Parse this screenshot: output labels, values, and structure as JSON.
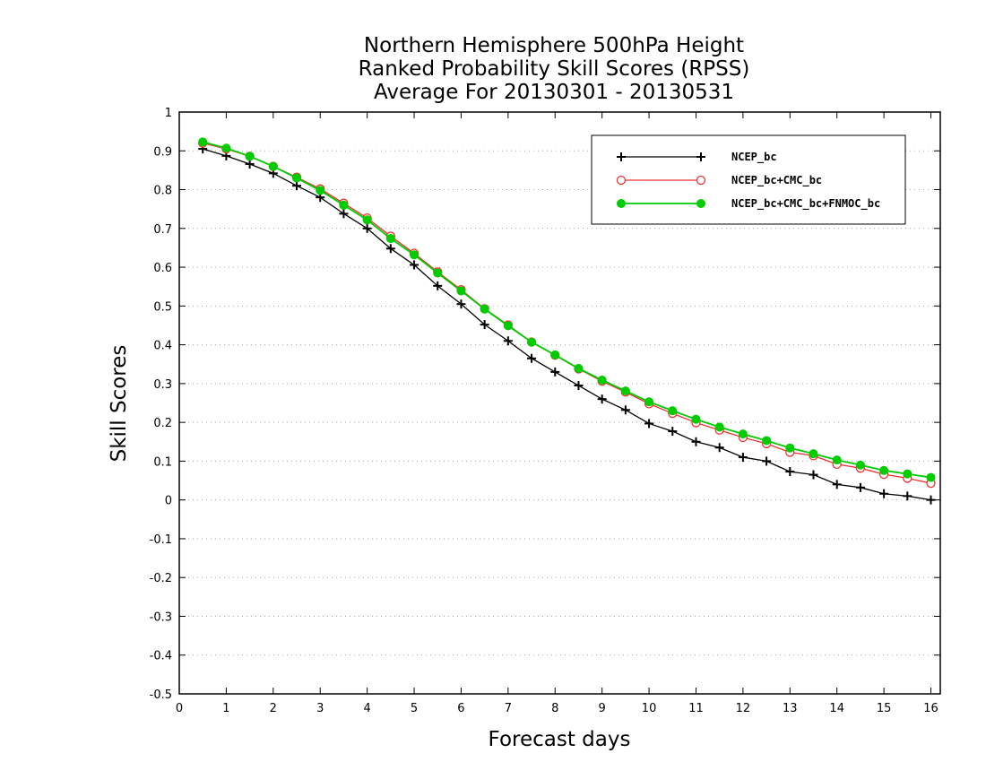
{
  "chart_data": {
    "type": "line",
    "title": [
      "Northern Hemisphere 500hPa Height",
      "Ranked Probability Skill Scores (RPSS)",
      "Average For 20130301 - 20130531"
    ],
    "xlabel": "Forecast days",
    "ylabel": "Skill Scores",
    "xlim": [
      0,
      16.2
    ],
    "ylim": [
      -0.5,
      1
    ],
    "xticks": [
      0,
      1,
      2,
      3,
      4,
      5,
      6,
      7,
      8,
      9,
      10,
      11,
      12,
      13,
      14,
      15,
      16
    ],
    "yticks": [
      -0.5,
      -0.4,
      -0.3,
      -0.2,
      -0.1,
      0,
      0.1,
      0.2,
      0.3,
      0.4,
      0.5,
      0.6,
      0.7,
      0.8,
      0.9,
      1
    ],
    "ytick_labels": [
      "-0.5",
      "-0.4",
      "-0.3",
      "-0.2",
      "-0.1",
      "0",
      "0.1",
      "0.2",
      "0.3",
      "0.4",
      "0.5",
      "0.6",
      "0.7",
      "0.8",
      "0.9",
      "1"
    ],
    "grid": true,
    "legend_position": "top-right",
    "x": [
      0.5,
      1,
      1.5,
      2,
      2.5,
      3,
      3.5,
      4,
      4.5,
      5,
      5.5,
      6,
      6.5,
      7,
      7.5,
      8,
      8.5,
      9,
      9.5,
      10,
      10.5,
      11,
      11.5,
      12,
      12.5,
      13,
      13.5,
      14,
      14.5,
      15,
      15.5,
      16
    ],
    "series": [
      {
        "name": "NCEP_bc",
        "color": "#000000",
        "marker": "plus",
        "values": [
          0.905,
          0.887,
          0.866,
          0.842,
          0.81,
          0.78,
          0.738,
          0.7,
          0.648,
          0.606,
          0.552,
          0.505,
          0.452,
          0.41,
          0.365,
          0.33,
          0.295,
          0.26,
          0.232,
          0.197,
          0.177,
          0.15,
          0.135,
          0.11,
          0.1,
          0.073,
          0.065,
          0.04,
          0.032,
          0.016,
          0.01,
          0.0
        ]
      },
      {
        "name": "NCEP_bc+CMC_bc",
        "color": "#ee3333",
        "marker": "open-circle",
        "values": [
          0.92,
          0.905,
          0.886,
          0.86,
          0.832,
          0.802,
          0.765,
          0.727,
          0.68,
          0.636,
          0.588,
          0.542,
          0.493,
          0.451,
          0.407,
          0.373,
          0.338,
          0.306,
          0.278,
          0.248,
          0.223,
          0.199,
          0.18,
          0.161,
          0.145,
          0.123,
          0.114,
          0.092,
          0.082,
          0.066,
          0.056,
          0.043
        ]
      },
      {
        "name": "NCEP_bc+CMC_bc+FNMOC_bc",
        "color": "#00cc00",
        "marker": "filled-circle",
        "values": [
          0.923,
          0.907,
          0.886,
          0.86,
          0.83,
          0.798,
          0.76,
          0.722,
          0.674,
          0.632,
          0.585,
          0.539,
          0.492,
          0.449,
          0.407,
          0.374,
          0.339,
          0.309,
          0.281,
          0.253,
          0.23,
          0.208,
          0.188,
          0.17,
          0.153,
          0.134,
          0.119,
          0.103,
          0.09,
          0.076,
          0.067,
          0.058
        ]
      }
    ]
  }
}
